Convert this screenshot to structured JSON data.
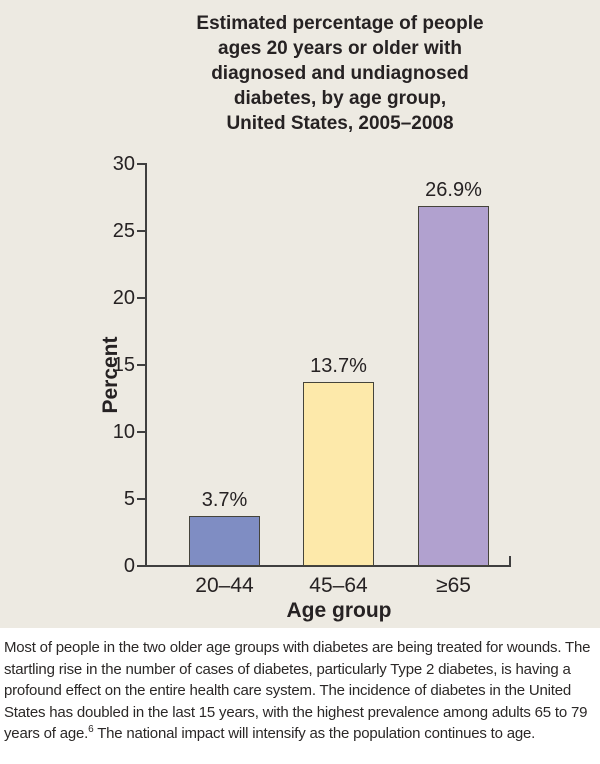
{
  "chart_data": {
    "type": "bar",
    "title": "Estimated percentage of people\nages 20 years or older with\ndiagnosed and undiagnosed\ndiabetes, by age group,\nUnited States, 2005–2008",
    "categories": [
      "20–44",
      "45–64",
      "≥65"
    ],
    "values": [
      3.7,
      13.7,
      26.9
    ],
    "value_labels": [
      "3.7%",
      "13.7%",
      "26.9%"
    ],
    "xlabel": "Age group",
    "ylabel": "Percent",
    "ylim": [
      0,
      30
    ],
    "yticks": [
      0,
      5,
      10,
      15,
      20,
      25,
      30
    ],
    "grid": false,
    "legend": "none",
    "bar_colors": [
      "#7f8dc3",
      "#fde9aa",
      "#b1a1cf"
    ]
  },
  "colors": {
    "panel_bg": "#edeae2",
    "page_bg": "#ffffff",
    "axis": "#3f3f3f",
    "bar_border": "#45443b",
    "text": "#262223"
  },
  "caption": {
    "before_sup": "Most of people in the two older age groups with diabetes are being treated for wounds. The startling rise in the number of cases of diabetes, particularly Type 2 diabetes, is having a profound effect on the entire health care system. The incidence of diabetes in the United States has doubled in the last 15 years, with the highest prevalence among adults 65 to 79 years of age.",
    "sup": "6",
    "after_sup": " The national impact will intensify as the population continues to age."
  }
}
